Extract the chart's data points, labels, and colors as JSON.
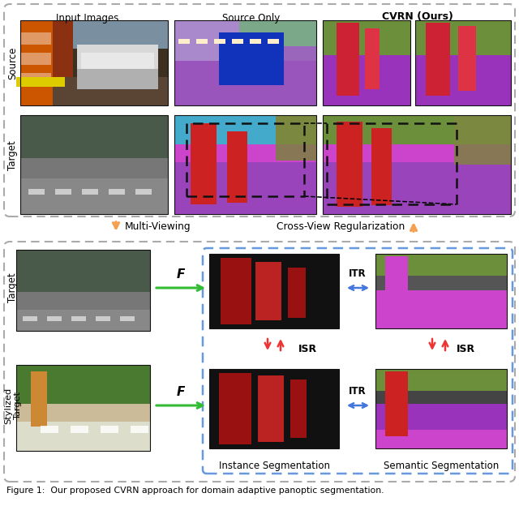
{
  "bg": "#ffffff",
  "gray_dash_color": "#aaaaaa",
  "blue_dash_color": "#6699dd",
  "orange_color": "#f5a050",
  "green_arrow": "#33bb33",
  "blue_arrow": "#4477dd",
  "red_arrow": "#ee3333",
  "col_h1": "Input Images",
  "col_h2": "Source Only",
  "col_h3": "CVRN (Ours)",
  "row_l1": "Source",
  "row_l2": "Target",
  "row_l3": "Target",
  "row_l4": "Stylized\nTarget",
  "mid_l": "Multi-Viewing",
  "mid_r": "Cross-View Regularization",
  "F": "F",
  "ITR": "ITR",
  "ISR": "ISR",
  "inst_seg": "Instance Segmentation",
  "sem_seg": "Semantic Segmentation",
  "caption_line1": "Figure 1:  Our proposed CVRN approach for domain adaptive panoptic segmentation.",
  "caption_line2": ""
}
